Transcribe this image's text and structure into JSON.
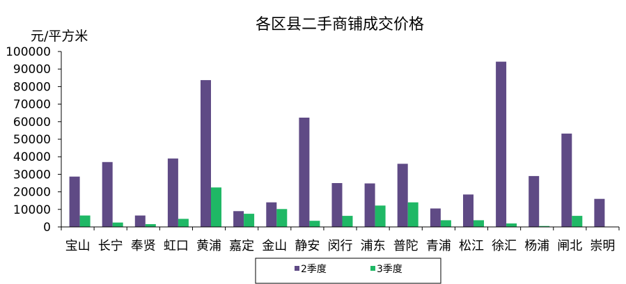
{
  "chart_data": {
    "type": "bar",
    "title": "各区县二手商铺成交价格",
    "ylabel": "元/平方米",
    "xlabel": "",
    "ylim": [
      0,
      100000
    ],
    "yticks": [
      "0",
      "10000",
      "20000",
      "30000",
      "40000",
      "50000",
      "60000",
      "70000",
      "80000",
      "90000",
      "100000"
    ],
    "categories": [
      "宝山",
      "长宁",
      "奉贤",
      "虹口",
      "黄浦",
      "嘉定",
      "金山",
      "静安",
      "闵行",
      "浦东",
      "普陀",
      "青浦",
      "松江",
      "徐汇",
      "杨浦",
      "闸北",
      "崇明"
    ],
    "series": [
      {
        "name": "2季度",
        "color": "#5f4a85",
        "values": [
          28700,
          37000,
          6500,
          39000,
          83700,
          9000,
          14000,
          62300,
          25000,
          24800,
          36000,
          10500,
          18500,
          94200,
          29000,
          53200,
          16000
        ]
      },
      {
        "name": "3季度",
        "color": "#1fb865",
        "values": [
          6500,
          2500,
          1600,
          4600,
          22500,
          7500,
          10200,
          3500,
          6300,
          12200,
          14000,
          3800,
          3800,
          2000,
          500,
          6300,
          0
        ]
      }
    ],
    "grid": false,
    "legend": "bottom"
  }
}
